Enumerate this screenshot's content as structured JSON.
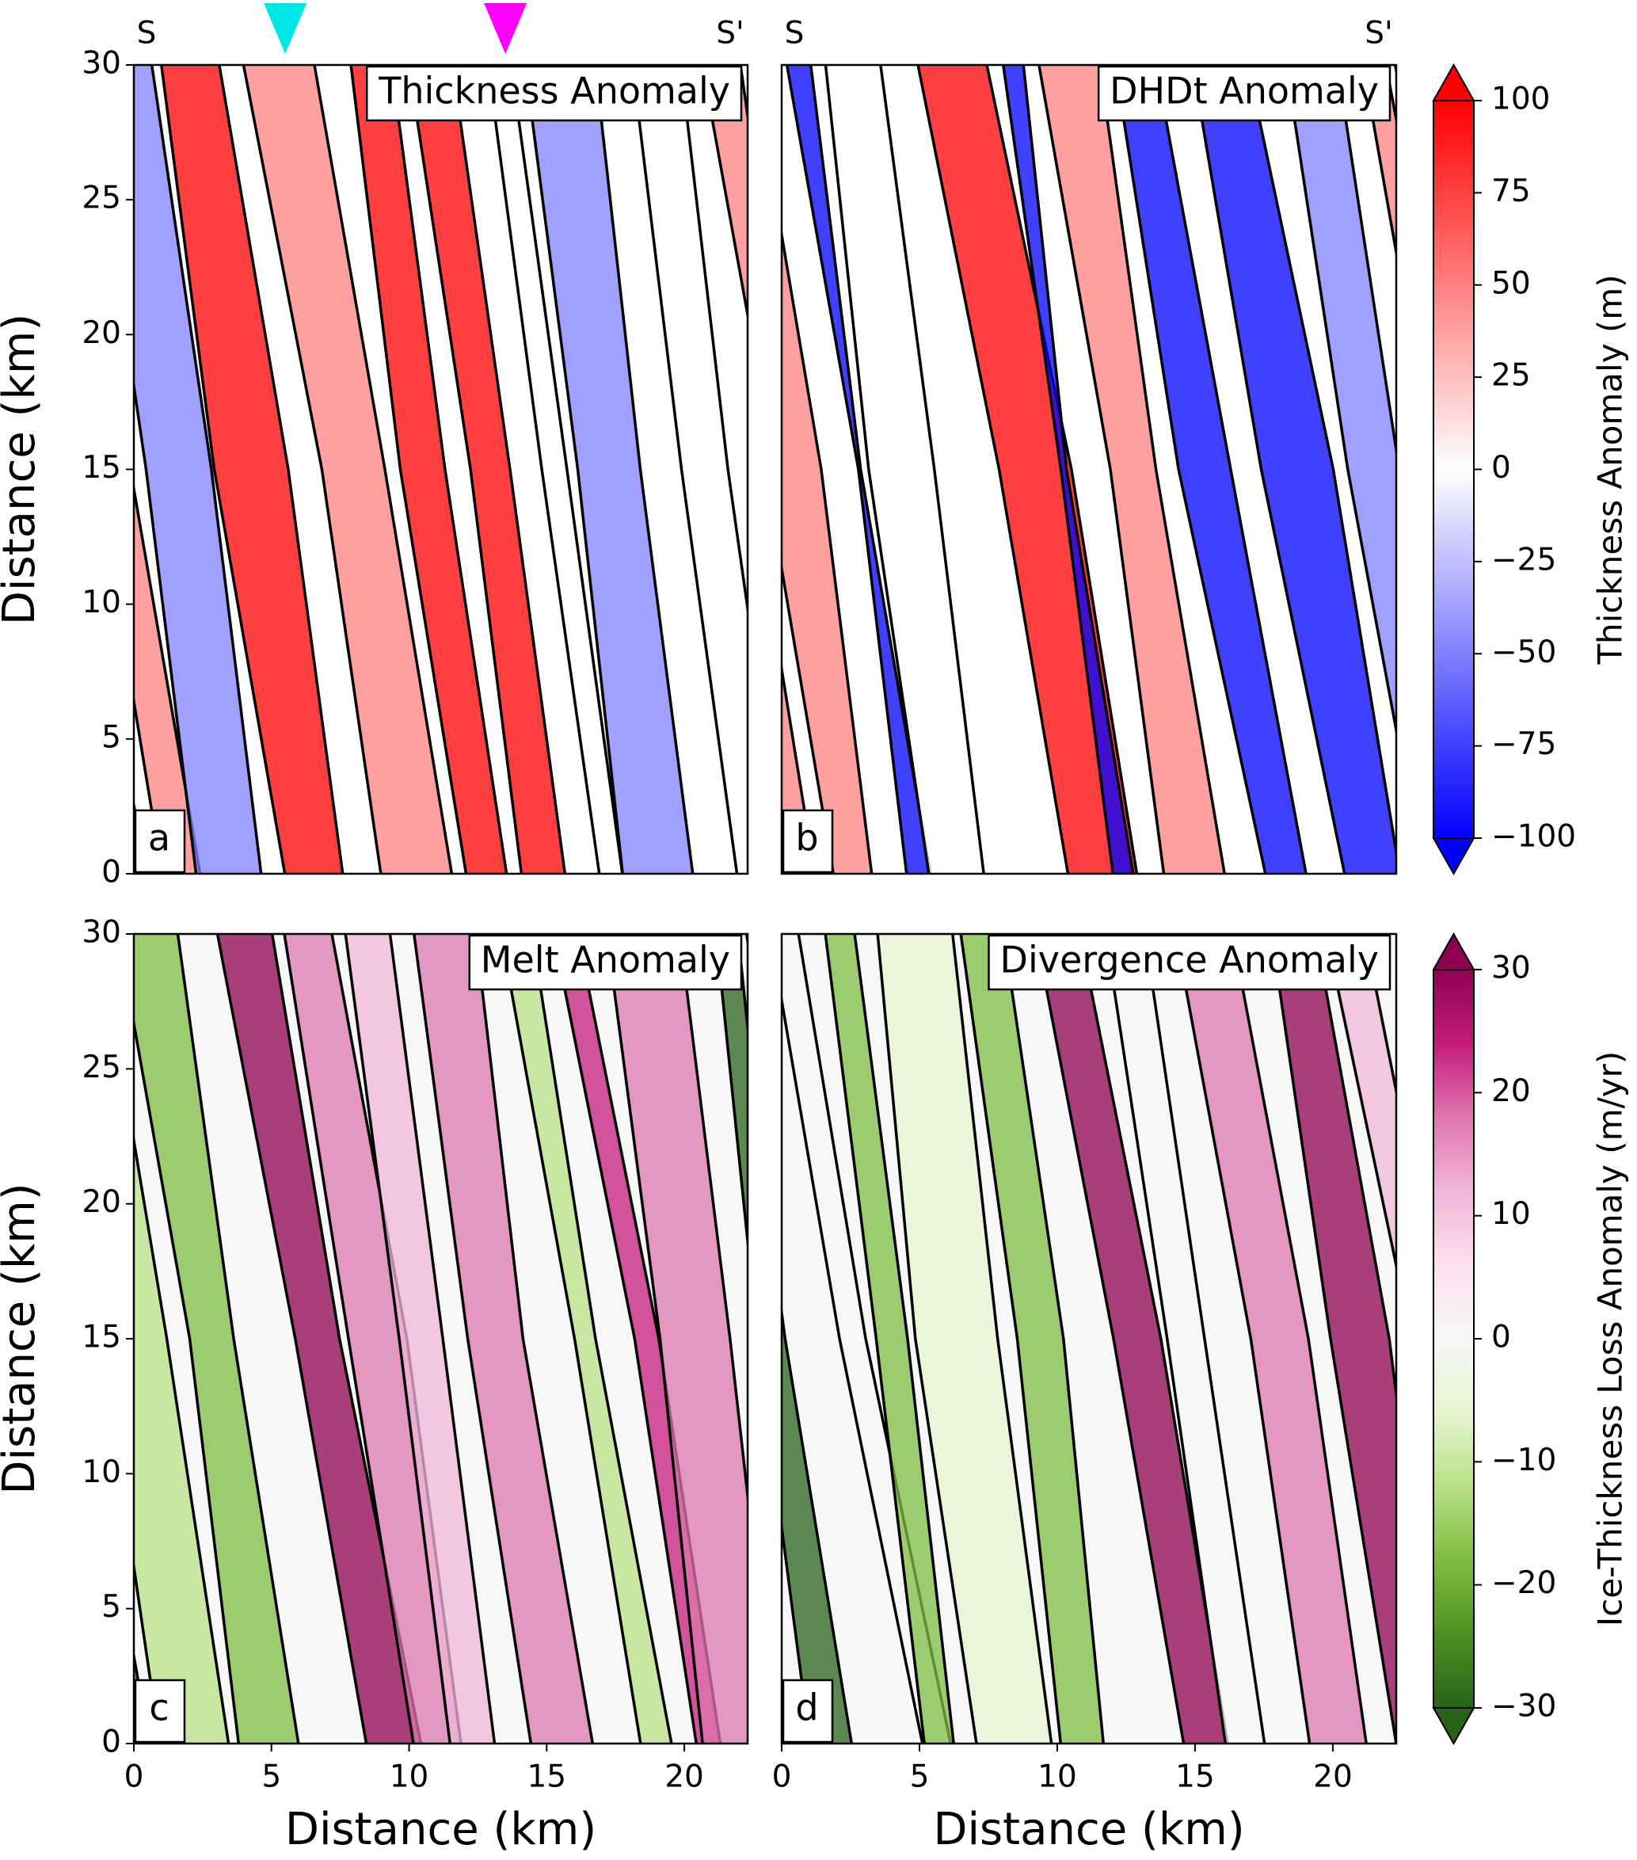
{
  "chart_data": [
    {
      "type": "image",
      "panel_label": "a",
      "title": "Thickness Anomaly",
      "ylabel": "Distance (km)",
      "xlim": [
        0,
        22.3
      ],
      "ylim": [
        0,
        30
      ],
      "yticks": [
        0,
        5,
        10,
        15,
        20,
        25,
        30
      ],
      "section_labels": [
        "S",
        "S'"
      ],
      "markers": [
        {
          "x": 5.5,
          "color": "#00e5e5"
        },
        {
          "x": 13.5,
          "color": "#ff00ff"
        }
      ]
    },
    {
      "type": "image",
      "panel_label": "b",
      "title": "DHDt Anomaly",
      "xlim": [
        0,
        22.3
      ],
      "ylim": [
        0,
        30
      ],
      "section_labels": [
        "S",
        "S'"
      ],
      "colorbar": {
        "label": "Thickness Anomaly (m)",
        "lim": [
          -100,
          100
        ],
        "ticks": [
          100,
          75,
          50,
          25,
          0,
          {
            "value": -25,
            "label": "−25"
          },
          {
            "value": -50,
            "label": "−50"
          },
          {
            "value": -75,
            "label": "−75"
          },
          {
            "value": -100,
            "label": "−100"
          }
        ],
        "colors": [
          "#0000ff",
          "#8080ff",
          "#ffffff",
          "#ff8080",
          "#ff0000"
        ]
      }
    },
    {
      "type": "image",
      "panel_label": "c",
      "title": "Melt Anomaly",
      "ylabel": "Distance (km)",
      "xlabel": "Distance (km)",
      "xlim": [
        0,
        22.3
      ],
      "ylim": [
        0,
        30
      ],
      "yticks": [
        0,
        5,
        10,
        15,
        20,
        25,
        30
      ],
      "xticks": [
        0,
        5,
        10,
        15,
        20
      ]
    },
    {
      "type": "image",
      "panel_label": "d",
      "title": "Divergence Anomaly",
      "xlabel": "Distance (km)",
      "xlim": [
        0,
        22.3
      ],
      "ylim": [
        0,
        30
      ],
      "xticks": [
        0,
        5,
        10,
        15,
        20
      ],
      "colorbar": {
        "label": "Ice-Thickness Loss Anomaly (m/yr)",
        "lim": [
          -30,
          30
        ],
        "ticks": [
          30,
          20,
          10,
          0,
          {
            "value": -10,
            "label": "−10"
          },
          {
            "value": -20,
            "label": "−20"
          },
          {
            "value": -30,
            "label": "−30"
          }
        ],
        "colors": [
          "#276419",
          "#4d9221",
          "#7fbc41",
          "#b8e186",
          "#e6f5d0",
          "#f7f7f7",
          "#fde0ef",
          "#f1b6da",
          "#de77ae",
          "#c51b7d",
          "#8e0152"
        ]
      }
    }
  ]
}
